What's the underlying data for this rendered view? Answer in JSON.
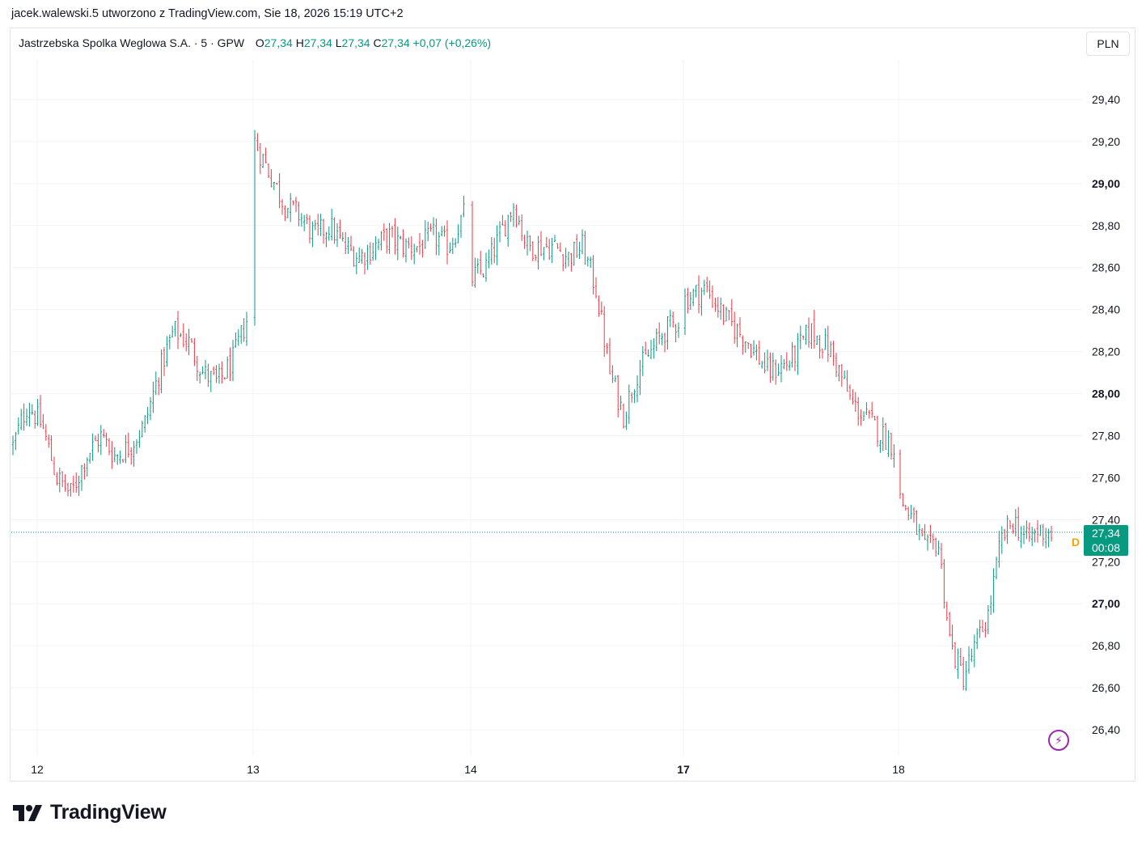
{
  "header": {
    "caption": "jacek.walewski.5 utworzono z TradingView.com, Sie 18, 2026 15:19 UTC+2"
  },
  "legend": {
    "symbol": "Jastrzebska Spolka Weglowa S.A. · 5 · GPW",
    "o_label": "O",
    "o_value": "27,34",
    "h_label": "H",
    "h_value": "27,34",
    "l_label": "L",
    "l_value": "27,34",
    "c_label": "C",
    "c_value": "27,34",
    "change": "+0,07 (+0,26%)"
  },
  "currency_button": "PLN",
  "price_tag": {
    "price": "27,34",
    "countdown": "00:08",
    "marker": "D"
  },
  "brand": {
    "name": "TradingView"
  },
  "colors": {
    "up": "#089981",
    "down": "#f23645",
    "grid": "#f0f3fa",
    "accent": "#9c27b0"
  },
  "chart_data": {
    "type": "ohlc",
    "y_axis": {
      "range": [
        26.3,
        29.55
      ],
      "ticks": [
        "26,40",
        "26,60",
        "26,80",
        "27,00",
        "27,20",
        "27,40",
        "27,60",
        "27,80",
        "28,00",
        "28,20",
        "28,40",
        "28,60",
        "28,80",
        "29,00",
        "29,20",
        "29,40"
      ],
      "tick_values": [
        26.4,
        26.6,
        26.8,
        27.0,
        27.2,
        27.4,
        27.6,
        27.8,
        28.0,
        28.2,
        28.4,
        28.6,
        28.8,
        29.0,
        29.2,
        29.4
      ],
      "bold_ticks": [
        "27,00",
        "28,00",
        "29,00"
      ]
    },
    "x_axis": {
      "ticks": [
        "12",
        "13",
        "14",
        "17",
        "18"
      ],
      "bold_ticks": [
        "17"
      ]
    },
    "last_price": 27.34,
    "close_path": [
      [
        27.75,
        27.95,
        27.85,
        27.6,
        27.52,
        27.7,
        27.8,
        27.7,
        27.75,
        27.85,
        28.1,
        28.3,
        28.25,
        28.1,
        28.05,
        28.15,
        28.35
      ],
      [
        29.2,
        29.05,
        28.9,
        28.85,
        28.75,
        28.8,
        28.7,
        28.65,
        28.7,
        28.75,
        28.7,
        28.7,
        28.75,
        28.7,
        28.85
      ],
      [
        28.55,
        28.6,
        28.75,
        28.9,
        28.7,
        28.7,
        28.7,
        28.65,
        28.7,
        28.5,
        28.1,
        27.9,
        28.1,
        28.2,
        28.3,
        28.35
      ],
      [
        28.45,
        28.5,
        28.35,
        28.25,
        28.1,
        28.15,
        28.3,
        28.2,
        27.95,
        27.85,
        27.75
      ],
      [
        27.5,
        27.4,
        27.25,
        27.3,
        26.8,
        26.65,
        26.8,
        26.95,
        27.3,
        27.4,
        27.3,
        27.35,
        27.34
      ]
    ]
  }
}
